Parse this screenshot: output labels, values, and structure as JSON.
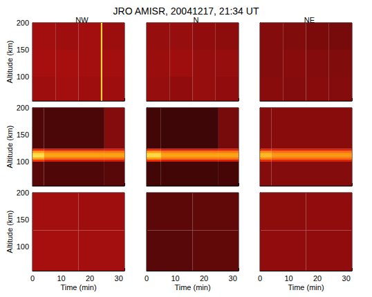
{
  "title": "JRO AMISR, 20041217, 21:34 UT",
  "chart_data": [
    {
      "type": "heatmap",
      "title": "NW",
      "ylabel": "Altitude (km)",
      "tick_labels": "y",
      "xlim": [
        0,
        32
      ],
      "xticks": [
        0,
        10,
        20,
        30
      ],
      "ylim": [
        55,
        200
      ],
      "yticks": [
        100,
        150,
        200
      ],
      "zlim": [
        0,
        1
      ],
      "cells": {
        "x_edges": [
          0,
          8,
          16,
          23.8,
          24.3,
          32
        ],
        "y_edges": [
          55,
          100,
          150,
          200
        ],
        "values": [
          [
            0.36,
            0.37,
            0.36,
            0.9,
            0.36
          ],
          [
            0.38,
            0.38,
            0.37,
            0.9,
            0.37
          ],
          [
            0.37,
            0.36,
            0.37,
            0.9,
            0.35
          ]
        ]
      }
    },
    {
      "type": "heatmap",
      "title": "N",
      "tick_labels": false,
      "xlim": [
        0,
        32
      ],
      "xticks": [
        0,
        10,
        20,
        30
      ],
      "ylim": [
        55,
        200
      ],
      "yticks": [
        100,
        150,
        200
      ],
      "zlim": [
        0,
        1
      ],
      "cells": {
        "x_edges": [
          0,
          8,
          16,
          24,
          32
        ],
        "y_edges": [
          55,
          100,
          150,
          200
        ],
        "values": [
          [
            0.34,
            0.33,
            0.34,
            0.33
          ],
          [
            0.35,
            0.36,
            0.34,
            0.34
          ],
          [
            0.34,
            0.34,
            0.33,
            0.32
          ]
        ]
      }
    },
    {
      "type": "heatmap",
      "title": "NE",
      "tick_labels": false,
      "xlim": [
        0,
        32
      ],
      "xticks": [
        0,
        10,
        20,
        30
      ],
      "ylim": [
        55,
        200
      ],
      "yticks": [
        100,
        150,
        200
      ],
      "zlim": [
        0,
        1
      ],
      "cells": {
        "x_edges": [
          0,
          8,
          16,
          24,
          32
        ],
        "y_edges": [
          55,
          100,
          150,
          200
        ],
        "values": [
          [
            0.31,
            0.3,
            0.31,
            0.3
          ],
          [
            0.3,
            0.31,
            0.3,
            0.29
          ],
          [
            0.3,
            0.29,
            0.28,
            0.27
          ]
        ]
      }
    },
    {
      "type": "heatmap",
      "ylabel": "Altitude (km)",
      "tick_labels": "y",
      "xlim": [
        0,
        32
      ],
      "xticks": [
        0,
        10,
        20,
        30
      ],
      "ylim": [
        55,
        200
      ],
      "yticks": [
        100,
        150,
        200
      ],
      "zlim": [
        0,
        1
      ],
      "cells": {
        "x_edges": [
          0,
          4,
          25,
          32
        ],
        "y_edges": [
          55,
          100,
          104,
          108,
          112,
          116,
          120,
          124,
          200
        ],
        "values": [
          [
            0.2,
            0.18,
            0.2
          ],
          [
            0.6,
            0.5,
            0.5
          ],
          [
            0.82,
            0.7,
            0.7
          ],
          [
            0.92,
            0.8,
            0.8
          ],
          [
            0.9,
            0.8,
            0.8
          ],
          [
            0.8,
            0.72,
            0.72
          ],
          [
            0.55,
            0.48,
            0.5
          ],
          [
            0.18,
            0.17,
            0.3
          ]
        ]
      }
    },
    {
      "type": "heatmap",
      "tick_labels": false,
      "xlim": [
        0,
        32
      ],
      "xticks": [
        0,
        10,
        20,
        30
      ],
      "ylim": [
        55,
        200
      ],
      "yticks": [
        100,
        150,
        200
      ],
      "zlim": [
        0,
        1
      ],
      "cells": {
        "x_edges": [
          0,
          5,
          25,
          32
        ],
        "y_edges": [
          55,
          100,
          104,
          108,
          112,
          116,
          120,
          124,
          200
        ],
        "values": [
          [
            0.15,
            0.15,
            0.16
          ],
          [
            0.58,
            0.5,
            0.5
          ],
          [
            0.8,
            0.72,
            0.72
          ],
          [
            0.9,
            0.8,
            0.8
          ],
          [
            0.9,
            0.8,
            0.8
          ],
          [
            0.8,
            0.72,
            0.72
          ],
          [
            0.55,
            0.48,
            0.5
          ],
          [
            0.15,
            0.14,
            0.27
          ]
        ]
      }
    },
    {
      "type": "heatmap",
      "tick_labels": false,
      "xlim": [
        0,
        32
      ],
      "xticks": [
        0,
        10,
        20,
        30
      ],
      "ylim": [
        55,
        200
      ],
      "yticks": [
        100,
        150,
        200
      ],
      "zlim": [
        0,
        1
      ],
      "cells": {
        "x_edges": [
          0,
          4,
          32
        ],
        "y_edges": [
          55,
          100,
          104,
          108,
          112,
          116,
          120,
          124,
          200
        ],
        "values": [
          [
            0.3,
            0.3
          ],
          [
            0.55,
            0.52
          ],
          [
            0.76,
            0.7
          ],
          [
            0.84,
            0.78
          ],
          [
            0.84,
            0.78
          ],
          [
            0.76,
            0.7
          ],
          [
            0.52,
            0.5
          ],
          [
            0.3,
            0.31
          ]
        ]
      }
    },
    {
      "type": "heatmap",
      "xlabel": "Time (min)",
      "ylabel": "Altitude (km)",
      "tick_labels": true,
      "xlim": [
        0,
        32
      ],
      "xticks": [
        0,
        10,
        20,
        30
      ],
      "ylim": [
        55,
        200
      ],
      "yticks": [
        100,
        150,
        200
      ],
      "zlim": [
        0,
        1
      ],
      "cells": {
        "x_edges": [
          0,
          16,
          32
        ],
        "y_edges": [
          55,
          130,
          200
        ],
        "values": [
          [
            0.38,
            0.37
          ],
          [
            0.37,
            0.36
          ]
        ]
      }
    },
    {
      "type": "heatmap",
      "xlabel": "Time (min)",
      "tick_labels": "x",
      "xlim": [
        0,
        32
      ],
      "xticks": [
        0,
        10,
        20,
        30
      ],
      "ylim": [
        55,
        200
      ],
      "yticks": [
        100,
        150,
        200
      ],
      "zlim": [
        0,
        1
      ],
      "cells": {
        "x_edges": [
          0,
          16,
          32
        ],
        "y_edges": [
          55,
          130,
          200
        ],
        "values": [
          [
            0.2,
            0.22
          ],
          [
            0.21,
            0.22
          ]
        ]
      }
    },
    {
      "type": "heatmap",
      "xlabel": "Time (min)",
      "tick_labels": "x",
      "xlim": [
        0,
        32
      ],
      "xticks": [
        0,
        10,
        20,
        30
      ],
      "ylim": [
        55,
        200
      ],
      "yticks": [
        100,
        150,
        200
      ],
      "zlim": [
        0,
        1
      ],
      "cells": {
        "x_edges": [
          0,
          16,
          32
        ],
        "y_edges": [
          55,
          130,
          200
        ],
        "values": [
          [
            0.33,
            0.33
          ],
          [
            0.32,
            0.33
          ]
        ]
      }
    }
  ]
}
